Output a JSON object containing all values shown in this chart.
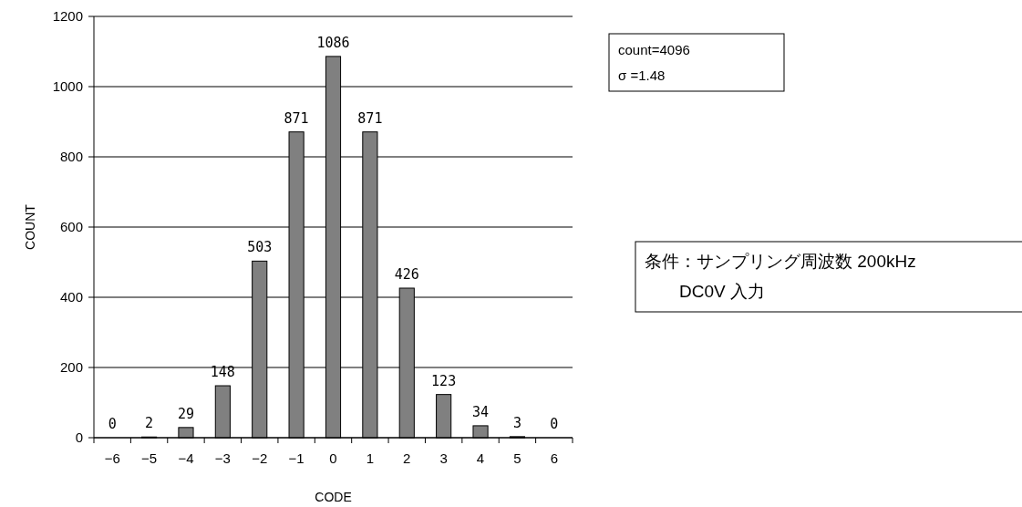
{
  "chart_data": {
    "type": "bar",
    "xlabel": "CODE",
    "ylabel": "COUNT",
    "categories": [
      "−6",
      "−5",
      "−4",
      "−3",
      "−2",
      "−1",
      "0",
      "1",
      "2",
      "3",
      "4",
      "5",
      "6"
    ],
    "values": [
      0,
      2,
      29,
      148,
      503,
      871,
      1086,
      871,
      426,
      123,
      34,
      3,
      0
    ],
    "color": "#808080",
    "ylim": [
      0,
      1200
    ],
    "yticks": [
      0,
      200,
      400,
      600,
      800,
      1000,
      1200
    ],
    "grid": "y",
    "data_labels": true,
    "annotations": [
      "count=4096\nσ =1.48",
      "条件：サンプリング周波数 200kHz\n　　DC0V 入力"
    ]
  }
}
